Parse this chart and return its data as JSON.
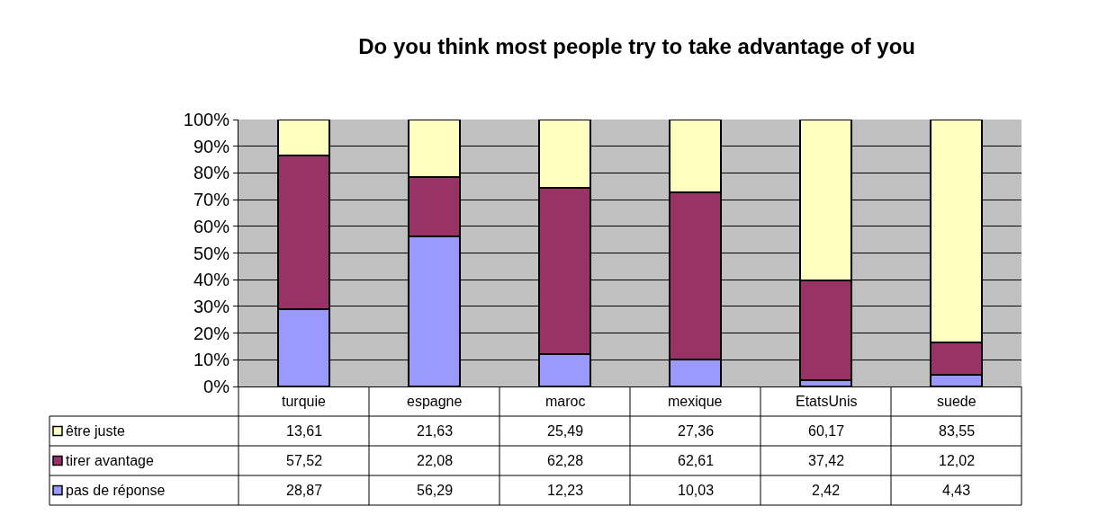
{
  "chart_data": {
    "type": "bar",
    "title": "Do you think most people try to take advantage of you",
    "stacked": true,
    "grid": "y",
    "legend": "bottom left",
    "categories": [
      "turquie",
      "espagne",
      "maroc",
      "mexique",
      "EtatsUnis",
      "suede"
    ],
    "series": [
      {
        "name": "pas de réponse",
        "color": "#9999ff",
        "values": [
          28.87,
          56.29,
          12.23,
          10.03,
          2.42,
          4.43
        ],
        "value_labels": [
          "28,87",
          "56,29",
          "12,23",
          "10,03",
          "2,42",
          "4,43"
        ]
      },
      {
        "name": "tirer avantage",
        "color": "#993366",
        "values": [
          57.52,
          22.08,
          62.28,
          62.61,
          37.42,
          12.02
        ],
        "value_labels": [
          "57,52",
          "22,08",
          "62,28",
          "62,61",
          "37,42",
          "12,02"
        ]
      },
      {
        "name": "être juste",
        "color": "#ffffc0",
        "values": [
          13.61,
          21.63,
          25.49,
          27.36,
          60.17,
          83.55
        ],
        "value_labels": [
          "13,61",
          "21,63",
          "25,49",
          "27,36",
          "60,17",
          "83,55"
        ]
      }
    ],
    "ylim": [
      0,
      100
    ],
    "yticks": [
      {
        "value": 0,
        "label": "0%"
      },
      {
        "value": 10,
        "label": "10%"
      },
      {
        "value": 20,
        "label": "20%"
      },
      {
        "value": 30,
        "label": "30%"
      },
      {
        "value": 40,
        "label": "40%"
      },
      {
        "value": 50,
        "label": "50%"
      },
      {
        "value": 60,
        "label": "60%"
      },
      {
        "value": 70,
        "label": "70%"
      },
      {
        "value": 80,
        "label": "80%"
      },
      {
        "value": 90,
        "label": "90%"
      },
      {
        "value": 100,
        "label": "100%"
      }
    ]
  }
}
